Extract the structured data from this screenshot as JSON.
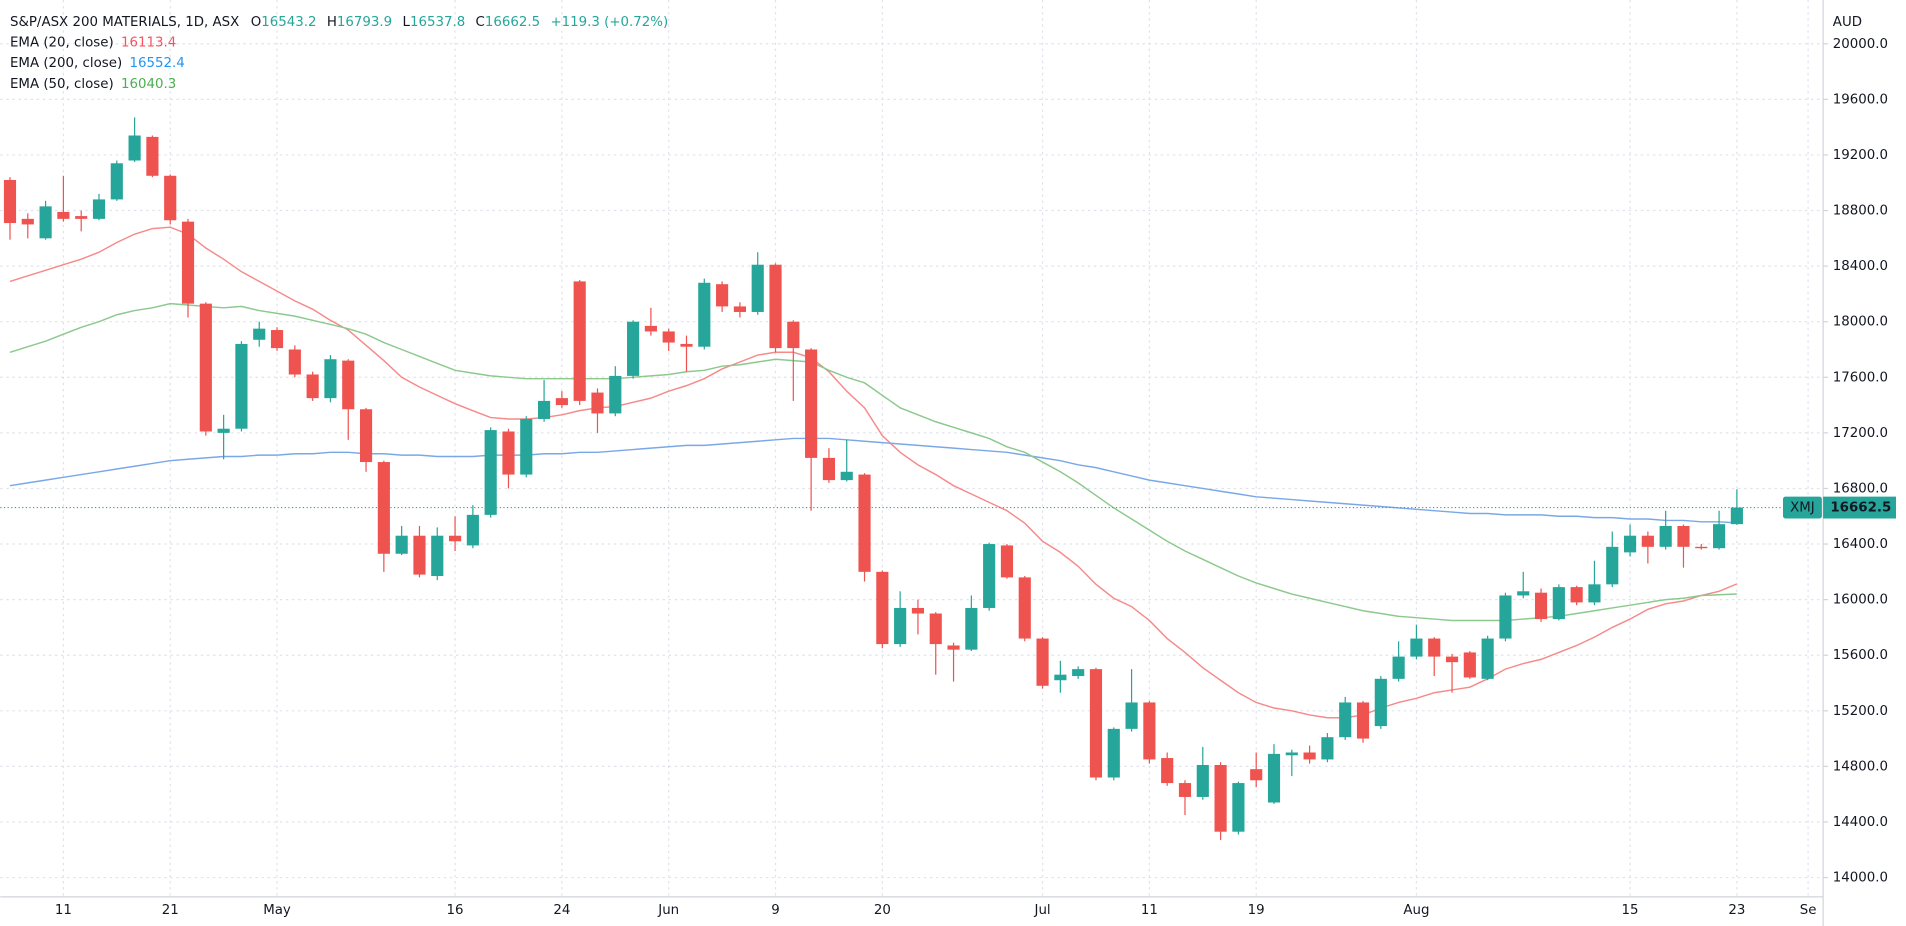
{
  "chart_data": {
    "type": "candlestick",
    "title": "S&P/ASX 200 MATERIALS, 1D, ASX",
    "ohlc_labels": [
      "O",
      "H",
      "L",
      "C"
    ],
    "change_label": "+119.3 (+0.72%)",
    "price_axis_label": "AUD",
    "symbol_tag": "XMJ",
    "up_color": "#26a69a",
    "down_color": "#ef5350",
    "grid": true,
    "ylim": [
      13870,
      20315
    ],
    "yticks": [
      {
        "value": 14000,
        "label": "14000.0"
      },
      {
        "value": 14400,
        "label": "14400.0"
      },
      {
        "value": 14800,
        "label": "14800.0"
      },
      {
        "value": 15200,
        "label": "15200.0"
      },
      {
        "value": 15600,
        "label": "15600.0"
      },
      {
        "value": 16000,
        "label": "16000.0"
      },
      {
        "value": 16400,
        "label": "16400.0"
      },
      {
        "value": 16800,
        "label": "16800.0"
      },
      {
        "value": 17200,
        "label": "17200.0"
      },
      {
        "value": 17600,
        "label": "17600.0"
      },
      {
        "value": 18000,
        "label": "18000.0"
      },
      {
        "value": 18400,
        "label": "18400.0"
      },
      {
        "value": 18800,
        "label": "18800.0"
      },
      {
        "value": 19200,
        "label": "19200.0"
      },
      {
        "value": 19600,
        "label": "19600.0"
      },
      {
        "value": 20000,
        "label": "20000.0"
      }
    ],
    "categories": [
      null,
      null,
      null,
      "11",
      null,
      null,
      null,
      null,
      null,
      "21",
      null,
      null,
      null,
      null,
      null,
      "May",
      null,
      null,
      null,
      null,
      null,
      null,
      null,
      null,
      null,
      "16",
      null,
      null,
      null,
      null,
      null,
      "24",
      null,
      null,
      null,
      null,
      null,
      "Jun",
      null,
      null,
      null,
      null,
      null,
      "9",
      null,
      null,
      null,
      null,
      null,
      "20",
      null,
      null,
      null,
      null,
      null,
      null,
      null,
      null,
      "Jul",
      null,
      null,
      null,
      null,
      null,
      "11",
      null,
      null,
      null,
      null,
      null,
      "19",
      null,
      null,
      null,
      null,
      null,
      null,
      null,
      null,
      "Aug",
      null,
      null,
      null,
      null,
      null,
      null,
      null,
      null,
      null,
      null,
      null,
      "15",
      null,
      null,
      null,
      null,
      null,
      "23",
      null,
      null,
      null,
      "Se"
    ],
    "candles": {
      "open": [
        19020,
        18740,
        18600,
        18790,
        18760,
        18740,
        18880,
        19160,
        19330,
        19050,
        18720,
        18130,
        17200,
        17230,
        17870,
        17940,
        17800,
        17620,
        17450,
        17720,
        17370,
        16990,
        16330,
        16460,
        16170,
        16460,
        16390,
        16610,
        17210,
        16900,
        17300,
        17450,
        18290,
        17490,
        17340,
        17610,
        17970,
        17930,
        17840,
        17820,
        18270,
        18110,
        18070,
        18410,
        18000,
        17800,
        17020,
        16860,
        16900,
        16200,
        15680,
        15940,
        15900,
        15670,
        15640,
        15940,
        16390,
        16160,
        15720,
        15420,
        15450,
        15500,
        14720,
        15070,
        15260,
        14860,
        14680,
        14580,
        14810,
        14330,
        14780,
        14540,
        14880,
        14900,
        14850,
        15010,
        15260,
        15090,
        15430,
        15590,
        15720,
        15590,
        15620,
        15430,
        15720,
        16030,
        16050,
        15860,
        16090,
        15980,
        16110,
        16340,
        16460,
        16380,
        16530,
        16380,
        16370,
        16543.2,
        null,
        null,
        null,
        null
      ],
      "high": [
        19040,
        18780,
        18870,
        19050,
        18800,
        18920,
        19160,
        19470,
        19340,
        19060,
        18740,
        18140,
        17330,
        17860,
        18000,
        17960,
        17830,
        17640,
        17760,
        17730,
        17380,
        17000,
        16530,
        16530,
        16520,
        16600,
        16680,
        17240,
        17230,
        17320,
        17580,
        17500,
        18300,
        17520,
        17680,
        18010,
        18100,
        17950,
        17900,
        18310,
        18290,
        18140,
        18500,
        18420,
        18010,
        17810,
        17090,
        17150,
        16910,
        16210,
        16060,
        16000,
        15910,
        15690,
        16030,
        16410,
        16400,
        16170,
        15730,
        15560,
        15520,
        15510,
        15080,
        15500,
        15270,
        14900,
        14700,
        14940,
        14830,
        14690,
        14900,
        14960,
        14920,
        14950,
        15040,
        15300,
        15270,
        15450,
        15700,
        15820,
        15730,
        15610,
        15630,
        15740,
        16050,
        16200,
        16080,
        16110,
        16100,
        16280,
        16490,
        16540,
        16490,
        16640,
        16540,
        16400,
        16640,
        16793.9,
        null,
        null,
        null,
        null
      ],
      "low": [
        18590,
        18600,
        18590,
        18720,
        18650,
        18730,
        18870,
        19150,
        19040,
        18700,
        18030,
        17180,
        17010,
        17210,
        17820,
        17790,
        17600,
        17430,
        17420,
        17150,
        16920,
        16200,
        16320,
        16160,
        16140,
        16350,
        16370,
        16590,
        16800,
        16880,
        17280,
        17380,
        17400,
        17200,
        17320,
        17590,
        17900,
        17790,
        17640,
        17800,
        18070,
        18030,
        18050,
        17780,
        17430,
        16640,
        16840,
        16850,
        16130,
        15650,
        15660,
        15750,
        15460,
        15410,
        15630,
        15920,
        16150,
        15700,
        15360,
        15330,
        15430,
        14700,
        14700,
        15050,
        14820,
        14660,
        14450,
        14560,
        14270,
        14310,
        14650,
        14530,
        14730,
        14820,
        14830,
        14990,
        14970,
        15070,
        15410,
        15570,
        15450,
        15330,
        15430,
        15420,
        15700,
        16010,
        15840,
        15850,
        15960,
        15960,
        16090,
        16310,
        16260,
        16360,
        16230,
        16360,
        16360,
        16537.8,
        null,
        null,
        null,
        null
      ],
      "close": [
        18710,
        18700,
        18830,
        18740,
        18740,
        18880,
        19140,
        19340,
        19050,
        18730,
        18130,
        17210,
        17230,
        17840,
        17950,
        17810,
        17620,
        17450,
        17730,
        17370,
        16990,
        16330,
        16460,
        16180,
        16460,
        16420,
        16610,
        17220,
        16900,
        17300,
        17430,
        17400,
        17430,
        17340,
        17610,
        18000,
        17930,
        17850,
        17820,
        18280,
        18110,
        18070,
        18410,
        17810,
        17810,
        17020,
        16860,
        16920,
        16200,
        15680,
        15940,
        15900,
        15680,
        15640,
        15940,
        16400,
        16160,
        15720,
        15380,
        15460,
        15500,
        14720,
        15070,
        15260,
        14850,
        14680,
        14580,
        14810,
        14330,
        14680,
        14700,
        14890,
        14900,
        14850,
        15010,
        15260,
        15000,
        15430,
        15590,
        15720,
        15590,
        15550,
        15440,
        15720,
        16030,
        16060,
        15860,
        16090,
        15980,
        16110,
        16380,
        16460,
        16380,
        16530,
        16380,
        16370,
        16543,
        16662.5,
        null,
        null,
        null,
        null
      ]
    },
    "series": [
      {
        "name": "EMA (20, close)",
        "color": "#f7525f",
        "line_color": "#f68a8a",
        "values": [
          18290,
          18330,
          18370,
          18410,
          18450,
          18500,
          18570,
          18630,
          18670,
          18680,
          18630,
          18530,
          18450,
          18360,
          18290,
          18220,
          18150,
          18090,
          18010,
          17940,
          17830,
          17720,
          17600,
          17530,
          17470,
          17410,
          17360,
          17310,
          17300,
          17300,
          17310,
          17330,
          17360,
          17380,
          17390,
          17420,
          17450,
          17500,
          17540,
          17590,
          17660,
          17710,
          17760,
          17780,
          17780,
          17740,
          17640,
          17500,
          17380,
          17180,
          17060,
          16970,
          16900,
          16820,
          16760,
          16700,
          16640,
          16550,
          16420,
          16340,
          16240,
          16110,
          16010,
          15950,
          15850,
          15720,
          15620,
          15510,
          15420,
          15330,
          15260,
          15220,
          15200,
          15170,
          15150,
          15150,
          15170,
          15220,
          15260,
          15290,
          15330,
          15350,
          15370,
          15430,
          15500,
          15540,
          15570,
          15620,
          15670,
          15730,
          15800,
          15860,
          15930,
          15970,
          15990,
          16030,
          16060,
          16113.4,
          null,
          null,
          null,
          null
        ]
      },
      {
        "name": "EMA (200, close)",
        "color": "#2196f3",
        "line_color": "#7aa8e6",
        "values": [
          16820,
          16840,
          16860,
          16880,
          16900,
          16920,
          16940,
          16960,
          16980,
          17000,
          17010,
          17020,
          17030,
          17030,
          17040,
          17040,
          17050,
          17050,
          17060,
          17060,
          17050,
          17050,
          17040,
          17040,
          17030,
          17030,
          17030,
          17040,
          17040,
          17040,
          17050,
          17050,
          17060,
          17060,
          17070,
          17080,
          17090,
          17100,
          17110,
          17110,
          17120,
          17130,
          17140,
          17150,
          17160,
          17160,
          17160,
          17150,
          17140,
          17130,
          17120,
          17110,
          17100,
          17090,
          17080,
          17070,
          17060,
          17040,
          17020,
          17000,
          16970,
          16950,
          16920,
          16890,
          16860,
          16840,
          16820,
          16800,
          16780,
          16760,
          16740,
          16730,
          16720,
          16710,
          16700,
          16690,
          16680,
          16670,
          16660,
          16650,
          16640,
          16630,
          16620,
          16620,
          16610,
          16610,
          16610,
          16600,
          16600,
          16590,
          16590,
          16580,
          16580,
          16570,
          16570,
          16560,
          16560,
          16552.4,
          null,
          null,
          null,
          null
        ]
      },
      {
        "name": "EMA (50, close)",
        "color": "#4caf50",
        "line_color": "#8cc98c",
        "values": [
          17780,
          17820,
          17860,
          17910,
          17960,
          18000,
          18050,
          18080,
          18100,
          18130,
          18120,
          18110,
          18100,
          18110,
          18080,
          18060,
          18040,
          18010,
          17980,
          17950,
          17910,
          17850,
          17800,
          17750,
          17700,
          17650,
          17630,
          17610,
          17600,
          17590,
          17590,
          17590,
          17590,
          17590,
          17590,
          17600,
          17610,
          17620,
          17640,
          17650,
          17680,
          17690,
          17710,
          17730,
          17720,
          17710,
          17650,
          17600,
          17560,
          17470,
          17380,
          17330,
          17280,
          17240,
          17200,
          17160,
          17100,
          17060,
          16990,
          16920,
          16840,
          16750,
          16660,
          16580,
          16500,
          16420,
          16350,
          16290,
          16230,
          16170,
          16120,
          16080,
          16040,
          16010,
          15980,
          15950,
          15920,
          15900,
          15880,
          15870,
          15860,
          15850,
          15850,
          15850,
          15850,
          15860,
          15870,
          15880,
          15900,
          15920,
          15940,
          15960,
          15980,
          16000,
          16010,
          16030,
          16035,
          16040.3,
          null,
          null,
          null,
          null
        ]
      }
    ]
  }
}
